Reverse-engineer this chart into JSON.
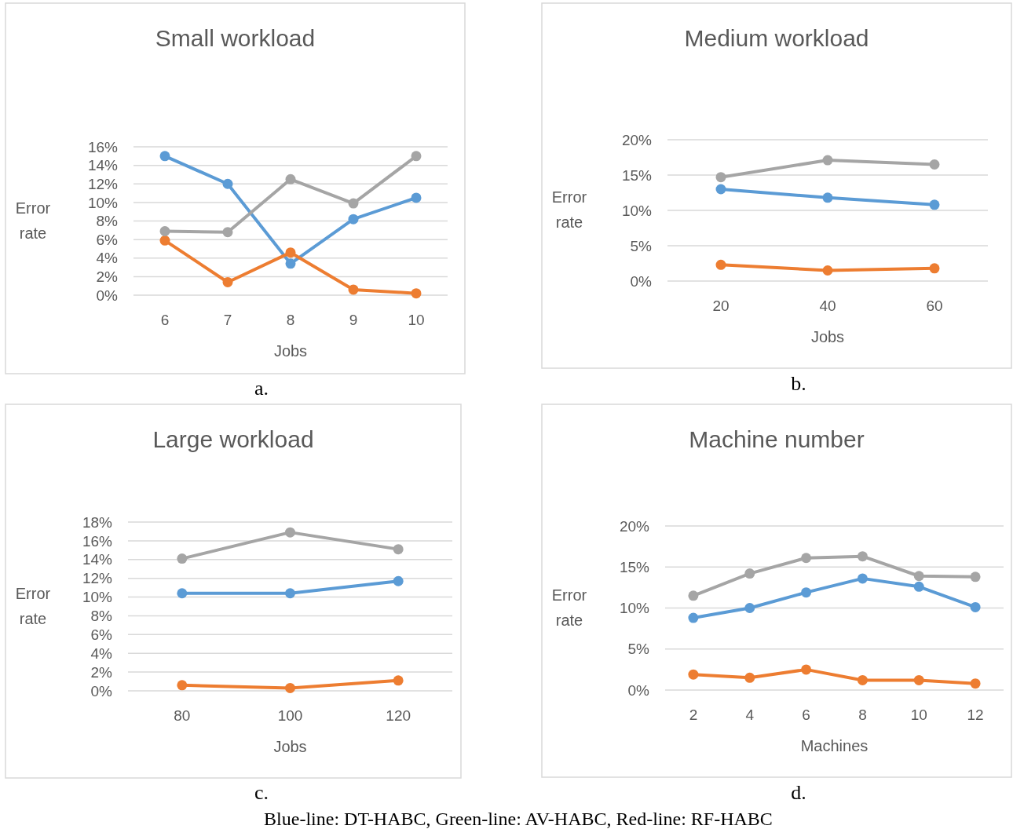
{
  "chart_data": [
    {
      "type": "line",
      "title": "Small workload",
      "xlabel": "Jobs",
      "ylabel": "Error rate",
      "categories": [
        "6",
        "7",
        "8",
        "9",
        "10"
      ],
      "ylim": [
        0,
        16
      ],
      "yticks": [
        {
          "value": 0,
          "label": "0%"
        },
        {
          "value": 2,
          "label": "2%"
        },
        {
          "value": 4,
          "label": "4%"
        },
        {
          "value": 6,
          "label": "6%"
        },
        {
          "value": 8,
          "label": "8%"
        },
        {
          "value": 10,
          "label": "10%"
        },
        {
          "value": 12,
          "label": "12%"
        },
        {
          "value": 14,
          "label": "14%"
        },
        {
          "value": 16,
          "label": "16%"
        }
      ],
      "grid": "y",
      "marker": "circle",
      "annotations": [
        "a."
      ],
      "series": [
        {
          "color": "#5b9bd5",
          "values": [
            15,
            12,
            3.4,
            8.2,
            10.5
          ]
        },
        {
          "color": "#ed7d31",
          "values": [
            5.9,
            1.4,
            4.6,
            0.6,
            0.2
          ]
        },
        {
          "color": "#a5a5a5",
          "values": [
            6.9,
            6.8,
            12.5,
            9.9,
            15
          ]
        }
      ]
    },
    {
      "type": "line",
      "title": "Medium workload",
      "xlabel": "Jobs",
      "ylabel": "Error rate",
      "categories": [
        "20",
        "40",
        "60"
      ],
      "ylim": [
        0,
        20
      ],
      "yticks": [
        {
          "value": 0,
          "label": "0%"
        },
        {
          "value": 5,
          "label": "5%"
        },
        {
          "value": 10,
          "label": "10%"
        },
        {
          "value": 15,
          "label": "15%"
        },
        {
          "value": 20,
          "label": "20%"
        }
      ],
      "grid": "y",
      "marker": "circle",
      "annotations": [
        "b."
      ],
      "series": [
        {
          "color": "#5b9bd5",
          "values": [
            13,
            11.8,
            10.8
          ]
        },
        {
          "color": "#ed7d31",
          "values": [
            2.3,
            1.5,
            1.8
          ]
        },
        {
          "color": "#a5a5a5",
          "values": [
            14.7,
            17.1,
            16.5
          ]
        }
      ]
    },
    {
      "type": "line",
      "title": "Large workload",
      "xlabel": "Jobs",
      "ylabel": "Error rate",
      "categories": [
        "80",
        "100",
        "120"
      ],
      "ylim": [
        0,
        18
      ],
      "yticks": [
        {
          "value": 0,
          "label": "0%"
        },
        {
          "value": 2,
          "label": "2%"
        },
        {
          "value": 4,
          "label": "4%"
        },
        {
          "value": 6,
          "label": "6%"
        },
        {
          "value": 8,
          "label": "8%"
        },
        {
          "value": 10,
          "label": "10%"
        },
        {
          "value": 12,
          "label": "12%"
        },
        {
          "value": 14,
          "label": "14%"
        },
        {
          "value": 16,
          "label": "16%"
        },
        {
          "value": 18,
          "label": "18%"
        }
      ],
      "grid": "y",
      "marker": "circle",
      "annotations": [
        "c."
      ],
      "series": [
        {
          "color": "#5b9bd5",
          "values": [
            10.4,
            10.4,
            11.7
          ]
        },
        {
          "color": "#ed7d31",
          "values": [
            0.6,
            0.3,
            1.1
          ]
        },
        {
          "color": "#a5a5a5",
          "values": [
            14.1,
            16.9,
            15.1
          ]
        }
      ]
    },
    {
      "type": "line",
      "title": "Machine number",
      "xlabel": "Machines",
      "ylabel": "Error rate",
      "categories": [
        "2",
        "4",
        "6",
        "8",
        "10",
        "12"
      ],
      "ylim": [
        0,
        20
      ],
      "yticks": [
        {
          "value": 0,
          "label": "0%"
        },
        {
          "value": 5,
          "label": "5%"
        },
        {
          "value": 10,
          "label": "10%"
        },
        {
          "value": 15,
          "label": "15%"
        },
        {
          "value": 20,
          "label": "20%"
        }
      ],
      "grid": "y",
      "marker": "circle",
      "annotations": [
        "d.",
        "Blue-line: DT-HABC, Green-line: AV-HABC, Red-line: RF-HABC"
      ],
      "series": [
        {
          "color": "#5b9bd5",
          "values": [
            8.8,
            10,
            11.9,
            13.6,
            12.6,
            10.1
          ]
        },
        {
          "color": "#ed7d31",
          "values": [
            1.9,
            1.5,
            2.5,
            1.2,
            1.2,
            0.8
          ]
        },
        {
          "color": "#a5a5a5",
          "values": [
            11.5,
            14.2,
            16.1,
            16.3,
            13.9,
            13.8
          ]
        }
      ]
    }
  ]
}
